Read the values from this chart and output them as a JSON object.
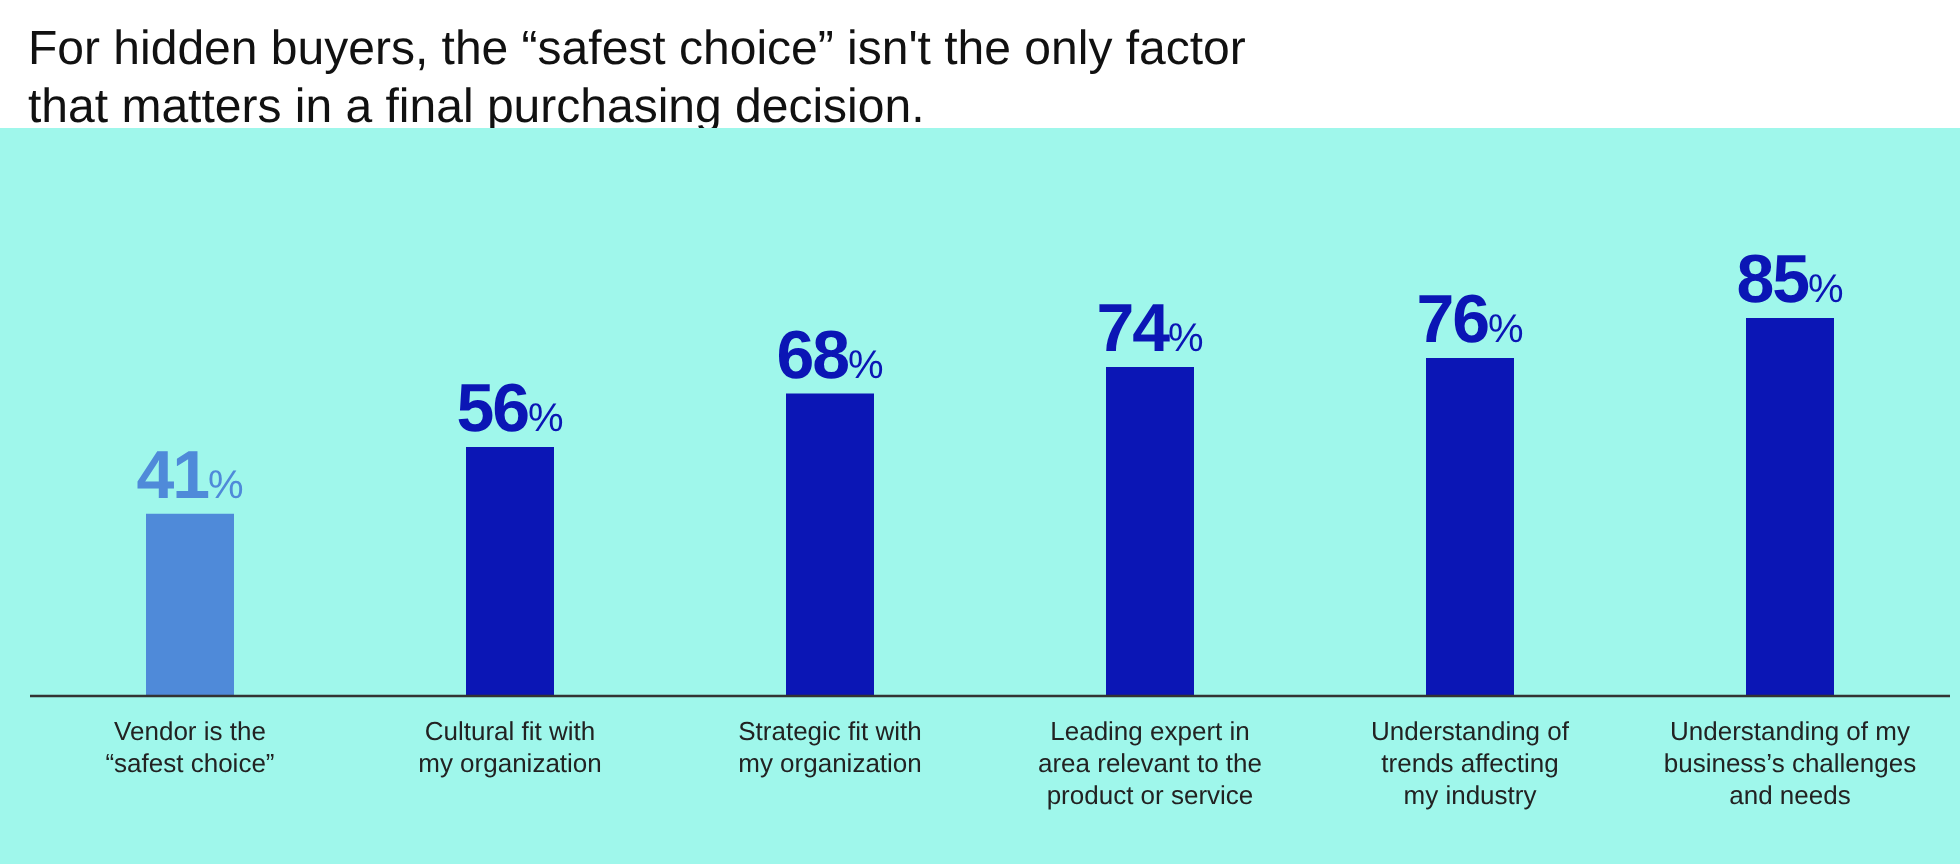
{
  "chart_data": {
    "type": "bar",
    "title": "For hidden buyers, the “safest choice” isn't the only factor\nthat matters in a final purchasing decision.",
    "categories": [
      "Vendor is the\n“safest choice”",
      "Cultural fit with\nmy organization",
      "Strategic fit with\nmy organization",
      "Leading expert in\narea relevant to the\nproduct or service",
      "Understanding of\ntrends affecting\nmy industry",
      "Understanding of my\nbusiness’s challenges\nand needs"
    ],
    "values": [
      41,
      56,
      68,
      74,
      76,
      85
    ],
    "colors": [
      "#4f8ad9",
      "#0b16b5",
      "#0b16b5",
      "#0b16b5",
      "#0b16b5",
      "#0b16b5"
    ],
    "value_labels": [
      "41%",
      "56%",
      "68%",
      "74%",
      "76%",
      "85%"
    ],
    "tick_labels": "x",
    "grid": false,
    "legend": false
  }
}
